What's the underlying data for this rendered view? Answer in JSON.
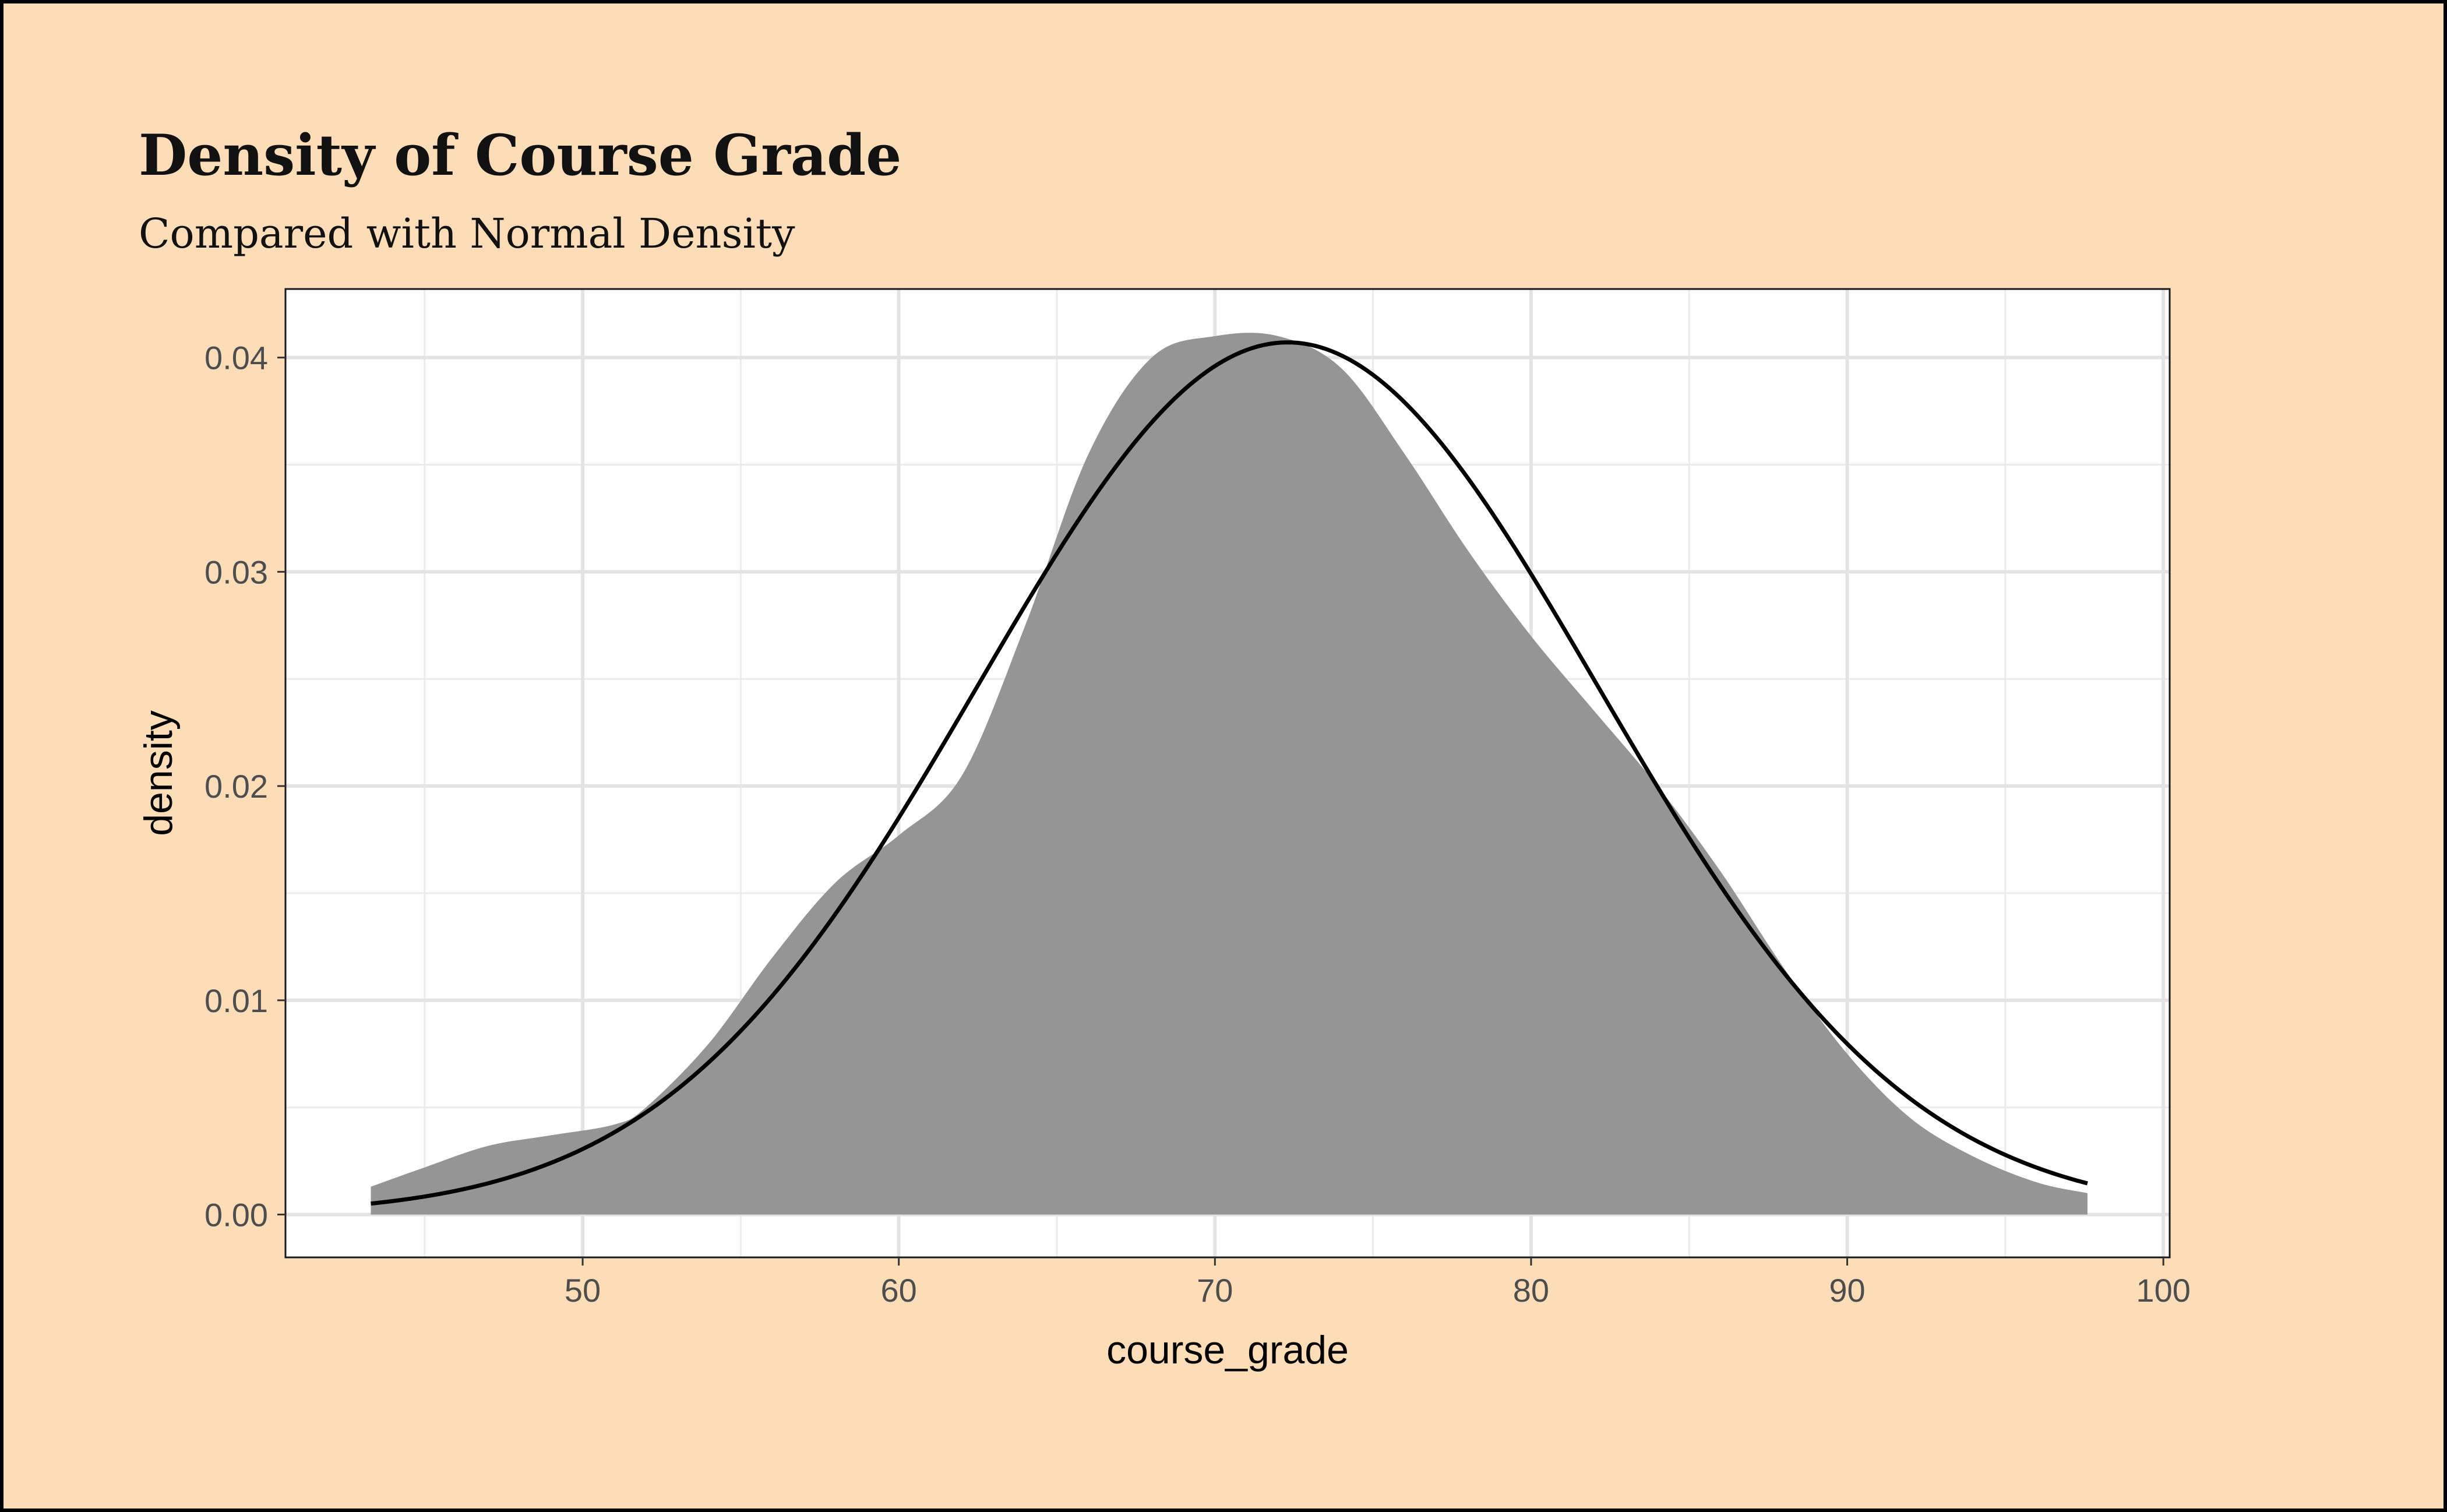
{
  "title": "Density of Course Grade",
  "subtitle": "Compared with Normal Density",
  "chart_data": {
    "type": "area",
    "xlabel": "course_grade",
    "ylabel": "density",
    "xlim": [
      40.6,
      100.2
    ],
    "ylim": [
      -0.002,
      0.0432
    ],
    "x_ticks": [
      50,
      60,
      70,
      80,
      90,
      100
    ],
    "x_tick_labels": [
      "50",
      "60",
      "70",
      "80",
      "90",
      "100"
    ],
    "y_ticks": [
      0.0,
      0.01,
      0.02,
      0.03,
      0.04
    ],
    "y_tick_labels": [
      "0.00",
      "0.01",
      "0.02",
      "0.03",
      "0.04"
    ],
    "grid": true,
    "series": [
      {
        "kind": "density-area",
        "fill": "#939393",
        "x": [
          43.3,
          45,
          47,
          49,
          51,
          52,
          54,
          56,
          58,
          60,
          62,
          64,
          66,
          68,
          70,
          72,
          74,
          76,
          78,
          80,
          82,
          84,
          86,
          88,
          90,
          92,
          94,
          96,
          97.6
        ],
        "y": [
          0.0013,
          0.0022,
          0.0032,
          0.0037,
          0.0042,
          0.005,
          0.008,
          0.012,
          0.0155,
          0.0177,
          0.0205,
          0.0275,
          0.0355,
          0.04,
          0.041,
          0.041,
          0.0395,
          0.0355,
          0.031,
          0.027,
          0.0235,
          0.02,
          0.016,
          0.0115,
          0.0075,
          0.0045,
          0.0027,
          0.0015,
          0.001
        ]
      },
      {
        "kind": "normal-curve",
        "stroke": "#000000",
        "mean": 72.3,
        "sd": 9.8,
        "x_range": [
          43.3,
          97.6
        ]
      }
    ]
  }
}
